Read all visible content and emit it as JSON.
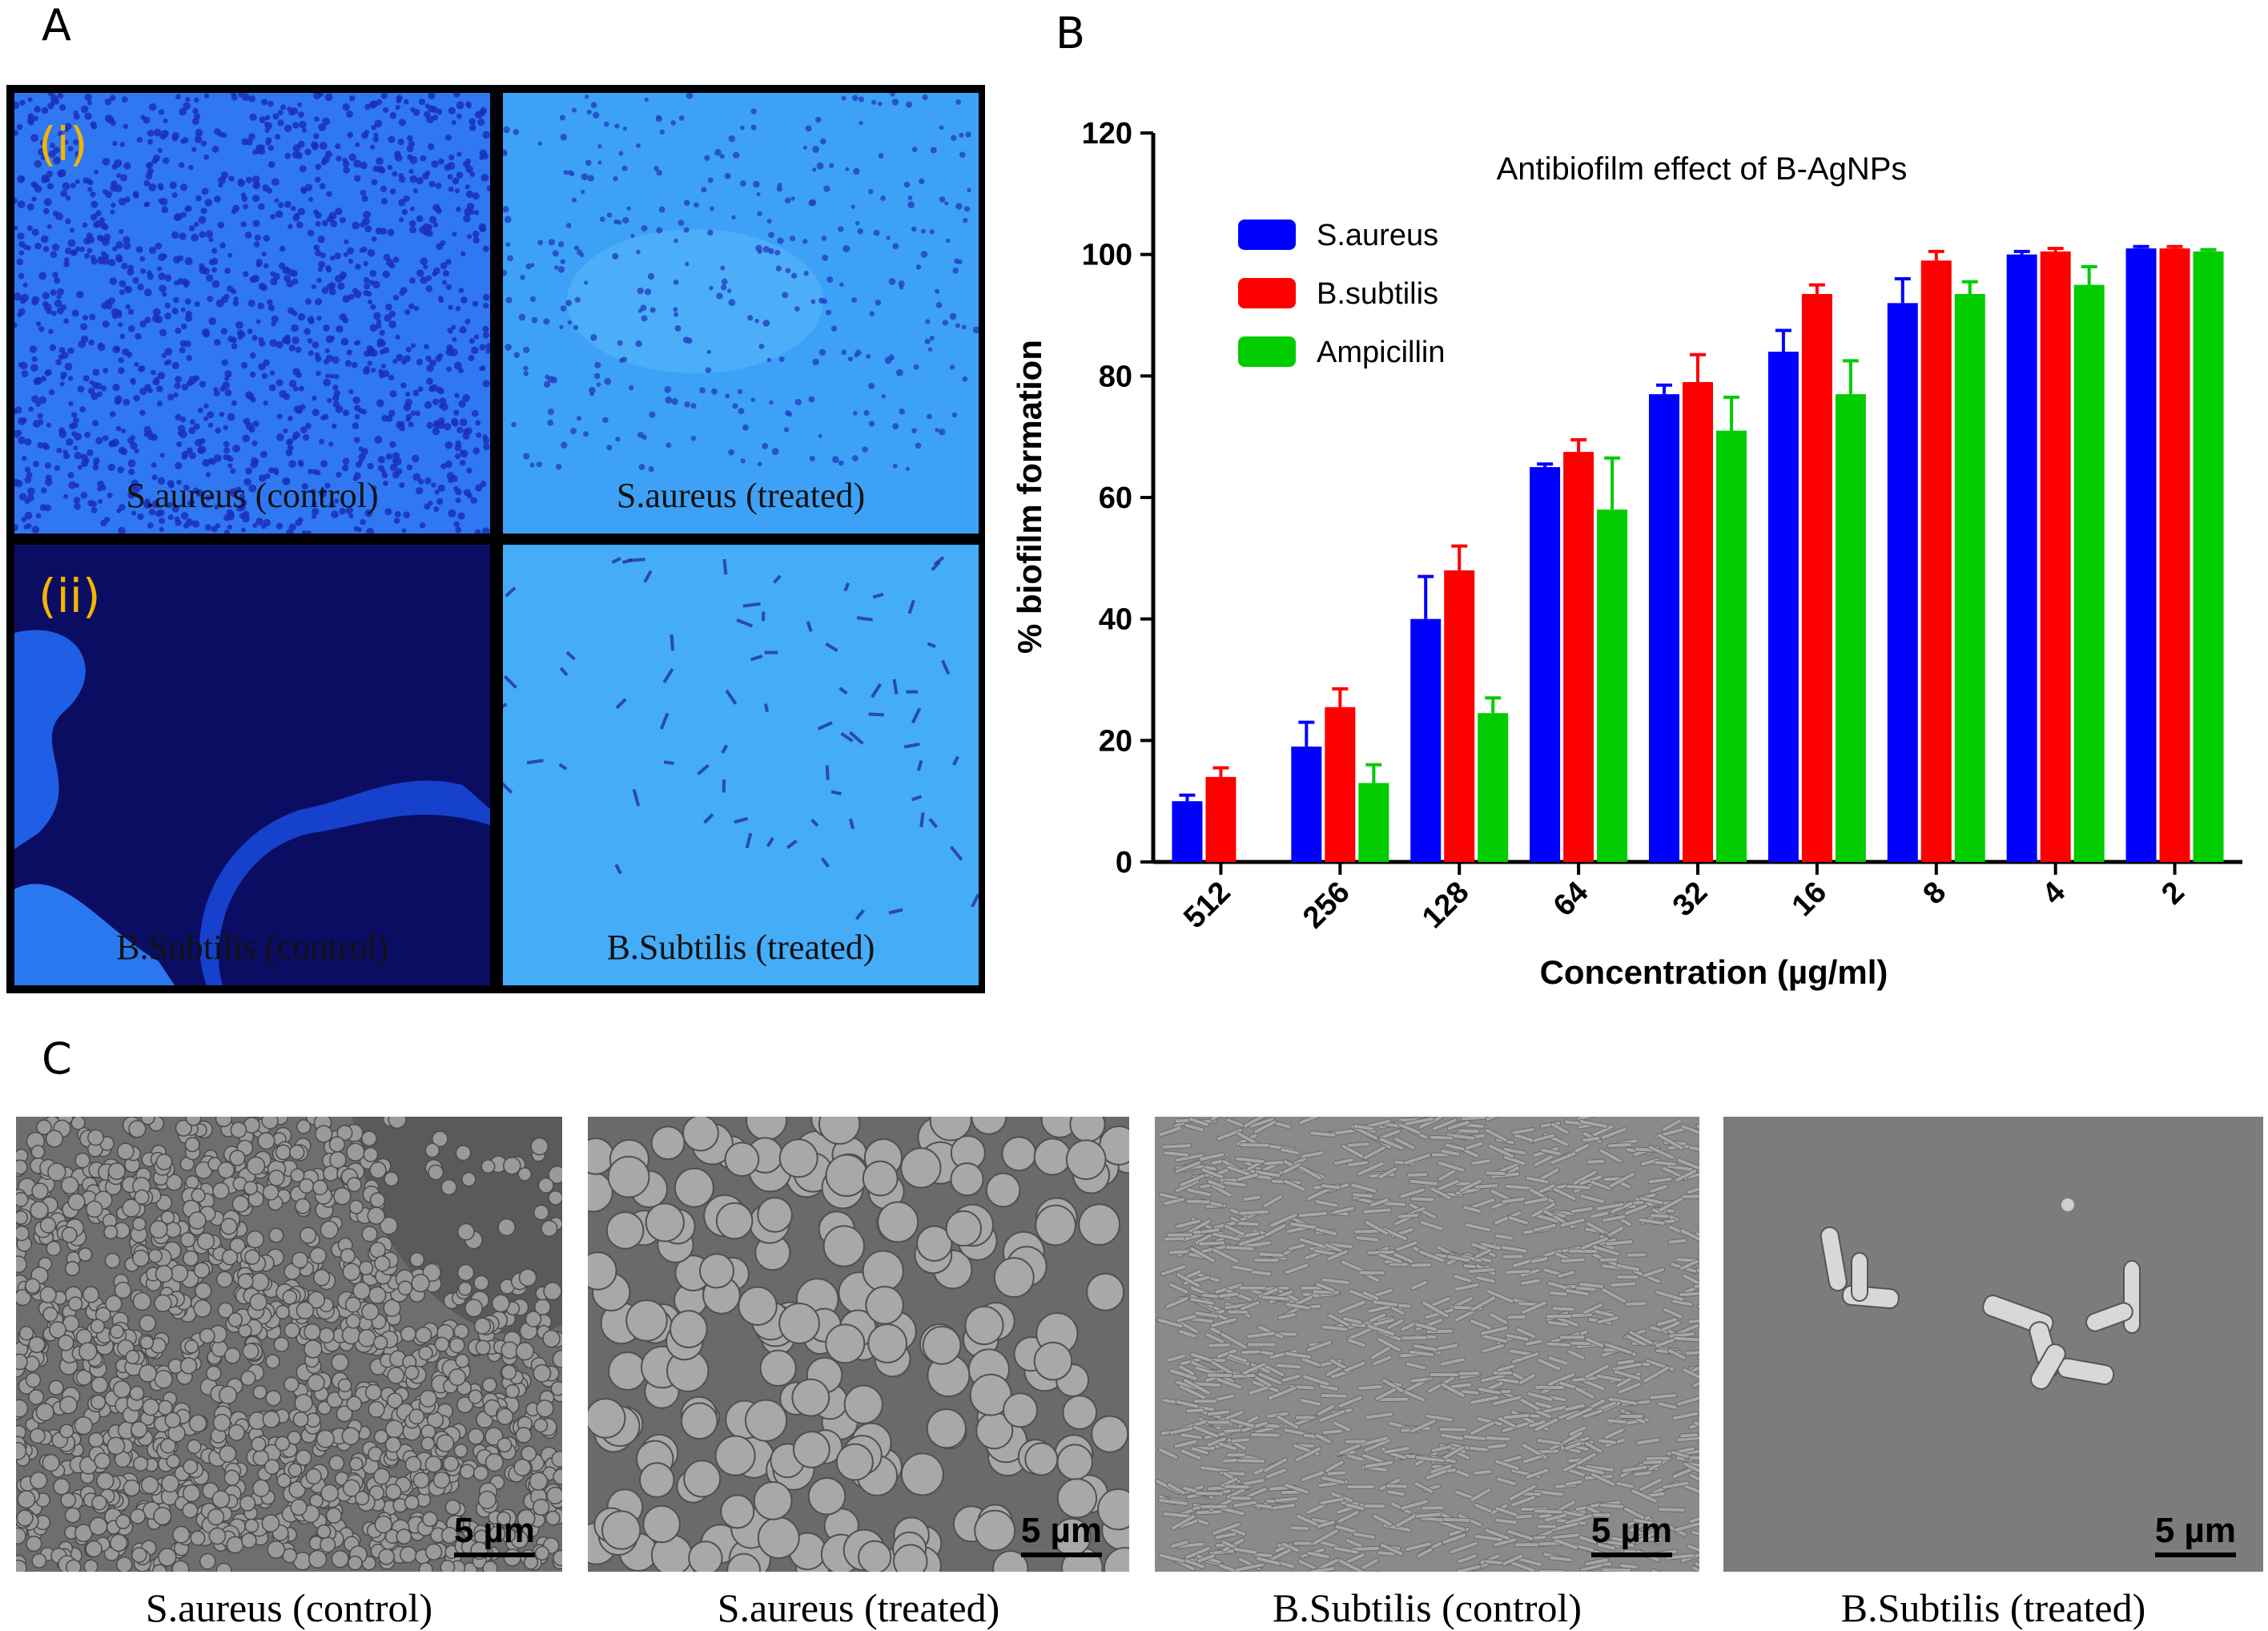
{
  "panels": {
    "a_label": "A",
    "b_label": "B",
    "c_label": "C"
  },
  "panel_a": {
    "row_labels": [
      "(i)",
      "(ii)"
    ],
    "images": [
      {
        "caption": "S.aureus (control)"
      },
      {
        "caption": "S.aureus (treated)"
      },
      {
        "caption": "B.Subtilis (control)"
      },
      {
        "caption": "B.Subtilis (treated)"
      }
    ]
  },
  "chart_data": {
    "type": "bar",
    "title": "Antibiofilm effect of B-AgNPs",
    "xlabel": "Concentration (µg/ml)",
    "ylabel": "% biofilm formation",
    "ylim": [
      0,
      120
    ],
    "yticks": [
      0,
      20,
      40,
      60,
      80,
      100,
      120
    ],
    "categories": [
      "512",
      "256",
      "128",
      "64",
      "32",
      "16",
      "8",
      "4",
      "2"
    ],
    "legend_position": "top-left",
    "series": [
      {
        "name": "S.aureus",
        "color": "#0000ff",
        "values": [
          10,
          19,
          40,
          65,
          77,
          84,
          92,
          100,
          101
        ],
        "errors": [
          1,
          4,
          7,
          0.5,
          1.5,
          3.5,
          4,
          0.5,
          0.3
        ]
      },
      {
        "name": "B.subtilis",
        "color": "#ff0000",
        "values": [
          14,
          25.5,
          48,
          67.5,
          79,
          93.5,
          99,
          100.5,
          101
        ],
        "errors": [
          1.5,
          3,
          4,
          2,
          4.5,
          1.5,
          1.5,
          0.5,
          0.3
        ]
      },
      {
        "name": "Ampicillin",
        "color": "#00cc00",
        "values": [
          null,
          13,
          24.5,
          58,
          71,
          77,
          93.5,
          95,
          100.5
        ],
        "errors": [
          null,
          3,
          2.5,
          8.5,
          5.5,
          5.5,
          2,
          3,
          0.3
        ]
      }
    ]
  },
  "panel_c": {
    "scale_label": "5 µm",
    "images": [
      {
        "caption": "S.aureus (control)"
      },
      {
        "caption": "S.aureus (treated)"
      },
      {
        "caption": "B.Subtilis (control)"
      },
      {
        "caption": "B.Subtilis (treated)"
      }
    ]
  }
}
